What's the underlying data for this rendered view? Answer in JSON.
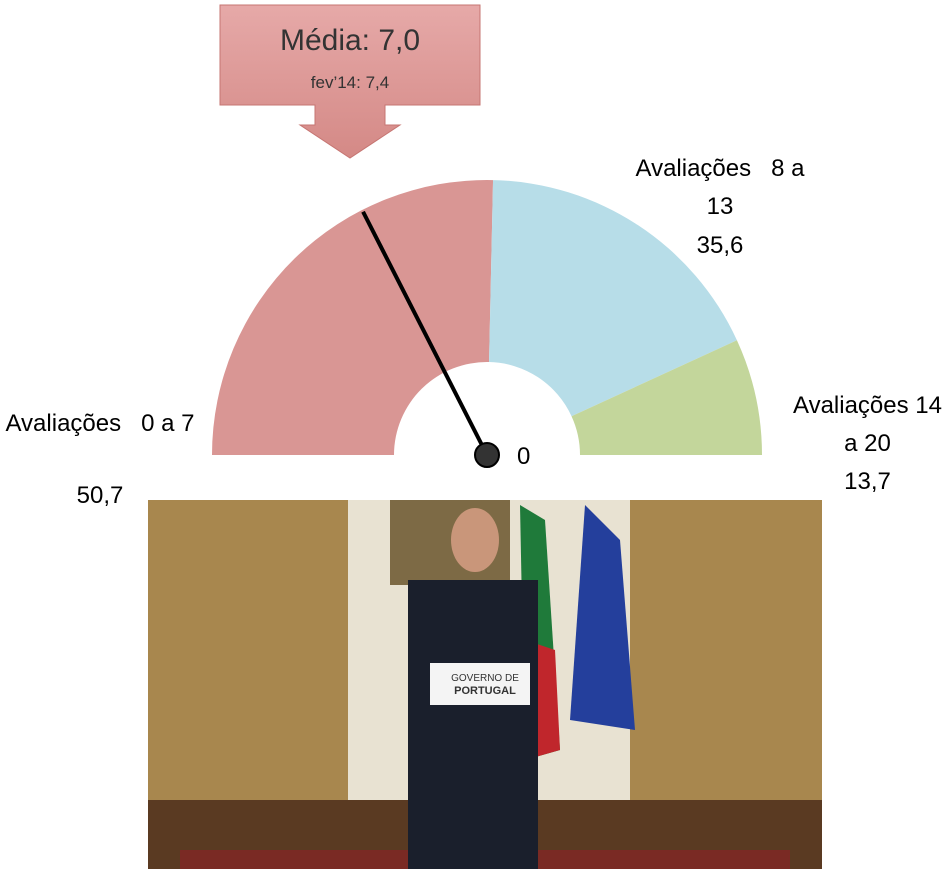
{
  "chart_data": {
    "type": "gauge",
    "title": "Média: 7,0",
    "subtitle": "fev’14: 7,4",
    "categories": [
      "Avaliações   0 a 7",
      "Avaliações   8 a 13",
      "Avaliações 14 a 20"
    ],
    "values": [
      50.7,
      35.6,
      13.7
    ],
    "value_labels": [
      "50,7",
      "35,6",
      "13,7"
    ],
    "colors": [
      "#d99694",
      "#b7dde8",
      "#c3d69b"
    ],
    "needle_value": 7,
    "scale": [
      0,
      20
    ],
    "pivot_label": "0"
  }
}
